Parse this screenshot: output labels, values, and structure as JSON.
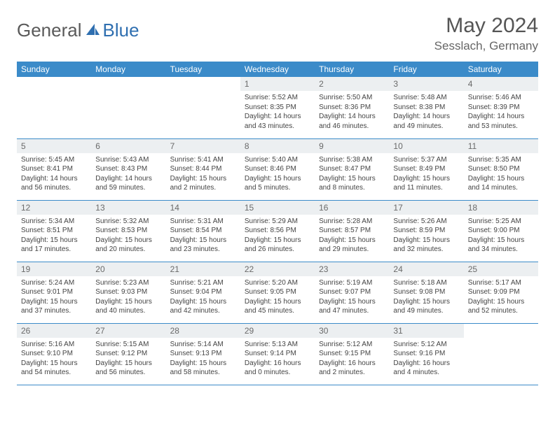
{
  "brand": {
    "word1": "General",
    "word2": "Blue"
  },
  "title": "May 2024",
  "location": "Sesslach, Germany",
  "colors": {
    "header_bg": "#3b8bc9",
    "header_text": "#ffffff",
    "daynum_bg": "#eceff1",
    "daynum_text": "#6a6a6a",
    "border": "#3b8bc9",
    "body_text": "#444444",
    "brand_gray": "#5a5a5a",
    "brand_blue": "#2f6fb0"
  },
  "weekdays": [
    "Sunday",
    "Monday",
    "Tuesday",
    "Wednesday",
    "Thursday",
    "Friday",
    "Saturday"
  ],
  "weeks": [
    [
      null,
      null,
      null,
      {
        "n": "1",
        "sr": "5:52 AM",
        "ss": "8:35 PM",
        "dl": "14 hours and 43 minutes."
      },
      {
        "n": "2",
        "sr": "5:50 AM",
        "ss": "8:36 PM",
        "dl": "14 hours and 46 minutes."
      },
      {
        "n": "3",
        "sr": "5:48 AM",
        "ss": "8:38 PM",
        "dl": "14 hours and 49 minutes."
      },
      {
        "n": "4",
        "sr": "5:46 AM",
        "ss": "8:39 PM",
        "dl": "14 hours and 53 minutes."
      }
    ],
    [
      {
        "n": "5",
        "sr": "5:45 AM",
        "ss": "8:41 PM",
        "dl": "14 hours and 56 minutes."
      },
      {
        "n": "6",
        "sr": "5:43 AM",
        "ss": "8:43 PM",
        "dl": "14 hours and 59 minutes."
      },
      {
        "n": "7",
        "sr": "5:41 AM",
        "ss": "8:44 PM",
        "dl": "15 hours and 2 minutes."
      },
      {
        "n": "8",
        "sr": "5:40 AM",
        "ss": "8:46 PM",
        "dl": "15 hours and 5 minutes."
      },
      {
        "n": "9",
        "sr": "5:38 AM",
        "ss": "8:47 PM",
        "dl": "15 hours and 8 minutes."
      },
      {
        "n": "10",
        "sr": "5:37 AM",
        "ss": "8:49 PM",
        "dl": "15 hours and 11 minutes."
      },
      {
        "n": "11",
        "sr": "5:35 AM",
        "ss": "8:50 PM",
        "dl": "15 hours and 14 minutes."
      }
    ],
    [
      {
        "n": "12",
        "sr": "5:34 AM",
        "ss": "8:51 PM",
        "dl": "15 hours and 17 minutes."
      },
      {
        "n": "13",
        "sr": "5:32 AM",
        "ss": "8:53 PM",
        "dl": "15 hours and 20 minutes."
      },
      {
        "n": "14",
        "sr": "5:31 AM",
        "ss": "8:54 PM",
        "dl": "15 hours and 23 minutes."
      },
      {
        "n": "15",
        "sr": "5:29 AM",
        "ss": "8:56 PM",
        "dl": "15 hours and 26 minutes."
      },
      {
        "n": "16",
        "sr": "5:28 AM",
        "ss": "8:57 PM",
        "dl": "15 hours and 29 minutes."
      },
      {
        "n": "17",
        "sr": "5:26 AM",
        "ss": "8:59 PM",
        "dl": "15 hours and 32 minutes."
      },
      {
        "n": "18",
        "sr": "5:25 AM",
        "ss": "9:00 PM",
        "dl": "15 hours and 34 minutes."
      }
    ],
    [
      {
        "n": "19",
        "sr": "5:24 AM",
        "ss": "9:01 PM",
        "dl": "15 hours and 37 minutes."
      },
      {
        "n": "20",
        "sr": "5:23 AM",
        "ss": "9:03 PM",
        "dl": "15 hours and 40 minutes."
      },
      {
        "n": "21",
        "sr": "5:21 AM",
        "ss": "9:04 PM",
        "dl": "15 hours and 42 minutes."
      },
      {
        "n": "22",
        "sr": "5:20 AM",
        "ss": "9:05 PM",
        "dl": "15 hours and 45 minutes."
      },
      {
        "n": "23",
        "sr": "5:19 AM",
        "ss": "9:07 PM",
        "dl": "15 hours and 47 minutes."
      },
      {
        "n": "24",
        "sr": "5:18 AM",
        "ss": "9:08 PM",
        "dl": "15 hours and 49 minutes."
      },
      {
        "n": "25",
        "sr": "5:17 AM",
        "ss": "9:09 PM",
        "dl": "15 hours and 52 minutes."
      }
    ],
    [
      {
        "n": "26",
        "sr": "5:16 AM",
        "ss": "9:10 PM",
        "dl": "15 hours and 54 minutes."
      },
      {
        "n": "27",
        "sr": "5:15 AM",
        "ss": "9:12 PM",
        "dl": "15 hours and 56 minutes."
      },
      {
        "n": "28",
        "sr": "5:14 AM",
        "ss": "9:13 PM",
        "dl": "15 hours and 58 minutes."
      },
      {
        "n": "29",
        "sr": "5:13 AM",
        "ss": "9:14 PM",
        "dl": "16 hours and 0 minutes."
      },
      {
        "n": "30",
        "sr": "5:12 AM",
        "ss": "9:15 PM",
        "dl": "16 hours and 2 minutes."
      },
      {
        "n": "31",
        "sr": "5:12 AM",
        "ss": "9:16 PM",
        "dl": "16 hours and 4 minutes."
      },
      null
    ]
  ],
  "labels": {
    "sunrise": "Sunrise:",
    "sunset": "Sunset:",
    "daylight": "Daylight:"
  }
}
